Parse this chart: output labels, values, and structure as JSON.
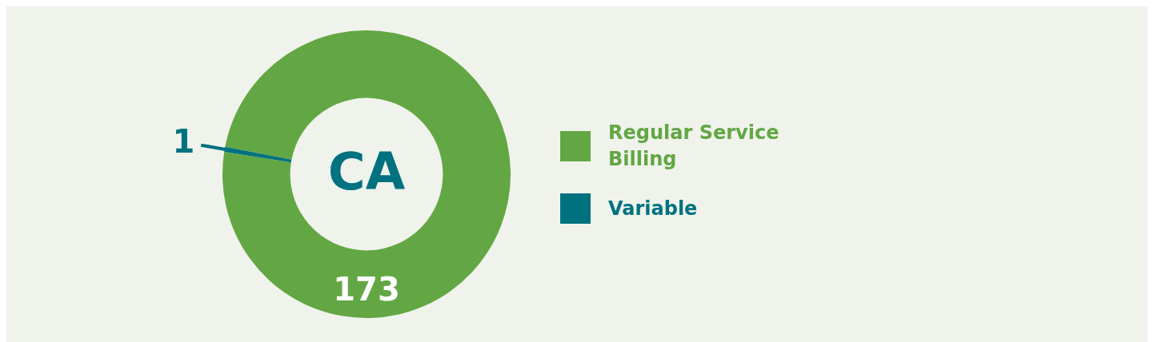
{
  "chart_data": {
    "type": "donut",
    "title": "CA",
    "categories": [
      "Regular Service Billing",
      "Variable"
    ],
    "values": [
      173,
      1
    ],
    "colors": [
      "#62a744",
      "#00727f"
    ],
    "data_labels": true,
    "legend": "right"
  }
}
